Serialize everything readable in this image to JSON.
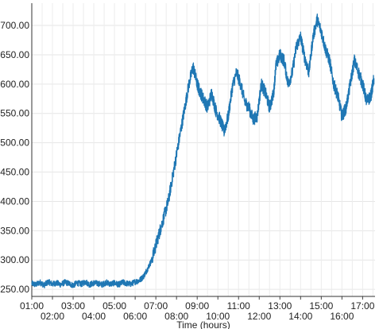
{
  "chart_data": {
    "type": "line",
    "title": "",
    "xlabel": "Time (hours)",
    "ylabel": "",
    "xlim": [
      1.0,
      17.6
    ],
    "ylim": [
      238,
      738
    ],
    "grid": true,
    "line_color": "#1f77b4",
    "y_ticks": [
      {
        "value": 250,
        "label": "250.00"
      },
      {
        "value": 300,
        "label": "300.00"
      },
      {
        "value": 350,
        "label": "350.00"
      },
      {
        "value": 400,
        "label": "400.00"
      },
      {
        "value": 450,
        "label": "450.00"
      },
      {
        "value": 500,
        "label": "500.00"
      },
      {
        "value": 550,
        "label": "550.00"
      },
      {
        "value": 600,
        "label": "600.00"
      },
      {
        "value": 650,
        "label": "650.00"
      },
      {
        "value": 700,
        "label": "700.00"
      }
    ],
    "x_ticks": [
      {
        "value": 1,
        "label": "01:00",
        "row": 1
      },
      {
        "value": 2,
        "label": "02:00",
        "row": 2
      },
      {
        "value": 3,
        "label": "03:00",
        "row": 1
      },
      {
        "value": 4,
        "label": "04:00",
        "row": 2
      },
      {
        "value": 5,
        "label": "05:00",
        "row": 1
      },
      {
        "value": 6,
        "label": "06:00",
        "row": 2
      },
      {
        "value": 7,
        "label": "07:00",
        "row": 1
      },
      {
        "value": 8,
        "label": "08:00",
        "row": 2
      },
      {
        "value": 9,
        "label": "09:00",
        "row": 1
      },
      {
        "value": 10,
        "label": "10:00",
        "row": 2
      },
      {
        "value": 11,
        "label": "11:00",
        "row": 1
      },
      {
        "value": 12,
        "label": "12:00",
        "row": 2
      },
      {
        "value": 13,
        "label": "13:00",
        "row": 1
      },
      {
        "value": 14,
        "label": "14:00",
        "row": 2
      },
      {
        "value": 15,
        "label": "15:00",
        "row": 1
      },
      {
        "value": 16,
        "label": "16:00",
        "row": 2
      },
      {
        "value": 17,
        "label": "17:00",
        "row": 1
      }
    ],
    "x": [
      1.0,
      1.2,
      1.4,
      1.6,
      1.8,
      2.0,
      2.2,
      2.4,
      2.6,
      2.8,
      3.0,
      3.2,
      3.4,
      3.6,
      3.8,
      4.0,
      4.2,
      4.4,
      4.6,
      4.8,
      5.0,
      5.2,
      5.4,
      5.6,
      5.8,
      6.0,
      6.2,
      6.4,
      6.6,
      6.8,
      7.0,
      7.2,
      7.4,
      7.6,
      7.8,
      8.0,
      8.2,
      8.4,
      8.6,
      8.8,
      9.0,
      9.1,
      9.3,
      9.5,
      9.7,
      9.9,
      10.1,
      10.3,
      10.5,
      10.7,
      10.9,
      11.1,
      11.3,
      11.5,
      11.7,
      11.9,
      12.1,
      12.3,
      12.5,
      12.7,
      12.8,
      13.0,
      13.2,
      13.4,
      13.6,
      13.8,
      14.0,
      14.2,
      14.4,
      14.6,
      14.8,
      15.0,
      15.2,
      15.4,
      15.6,
      15.8,
      16.0,
      16.2,
      16.4,
      16.6,
      16.8,
      17.0,
      17.2,
      17.4,
      17.55
    ],
    "y": [
      260,
      258,
      262,
      257,
      263,
      259,
      261,
      258,
      262,
      260,
      257,
      261,
      259,
      263,
      258,
      261,
      260,
      258,
      262,
      259,
      261,
      258,
      262,
      260,
      259,
      263,
      265,
      272,
      285,
      300,
      325,
      350,
      375,
      400,
      440,
      480,
      520,
      560,
      600,
      630,
      600,
      590,
      575,
      560,
      585,
      555,
      540,
      520,
      545,
      595,
      620,
      600,
      570,
      560,
      540,
      545,
      600,
      585,
      560,
      585,
      630,
      650,
      640,
      600,
      620,
      665,
      680,
      645,
      620,
      680,
      710,
      690,
      660,
      640,
      600,
      580,
      545,
      560,
      600,
      640,
      620,
      600,
      570,
      580,
      610
    ]
  }
}
